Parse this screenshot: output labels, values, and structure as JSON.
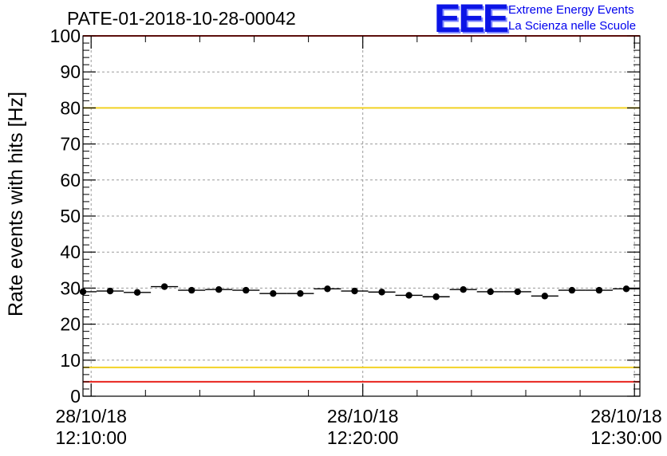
{
  "logo": {
    "letters": "EEE",
    "line1": "Extreme Energy Events",
    "line2": "La Scienza nelle Scuole",
    "color": "#0b14e6"
  },
  "chart_data": {
    "type": "scatter",
    "title": "PATE-01-2018-10-28-00042",
    "ylabel": "Rate events with hits [Hz]",
    "xlabel": "",
    "ylim": [
      0,
      100
    ],
    "yticks": [
      0,
      10,
      20,
      30,
      40,
      50,
      60,
      70,
      80,
      90,
      100
    ],
    "xlim_minutes": [
      -0.3,
      20.2
    ],
    "xticks": [
      {
        "minute": 0,
        "date": "28/10/18",
        "time": "12:10:00"
      },
      {
        "minute": 10,
        "date": "28/10/18",
        "time": "12:20:00"
      },
      {
        "minute": 20,
        "date": "28/10/18",
        "time": "12:30:00"
      }
    ],
    "grid": true,
    "bin_width_minutes": 1,
    "x_minutes": [
      -0.3,
      0.7,
      1.7,
      2.7,
      3.7,
      4.7,
      5.7,
      6.7,
      7.7,
      8.7,
      9.7,
      10.7,
      11.7,
      12.7,
      13.7,
      14.7,
      15.7,
      16.7,
      17.7,
      18.7,
      19.7
    ],
    "values": [
      29.0,
      29.2,
      28.8,
      30.4,
      29.4,
      29.6,
      29.4,
      28.5,
      28.5,
      29.8,
      29.2,
      28.9,
      28.0,
      27.6,
      29.6,
      29.0,
      29.0,
      27.8,
      29.4,
      29.4,
      29.8
    ],
    "reference_lines": [
      {
        "y": 100,
        "color": "#e8251e"
      },
      {
        "y": 80,
        "color": "#f2d224"
      },
      {
        "y": 8,
        "color": "#f2d224"
      },
      {
        "y": 4,
        "color": "#e8251e"
      }
    ]
  }
}
